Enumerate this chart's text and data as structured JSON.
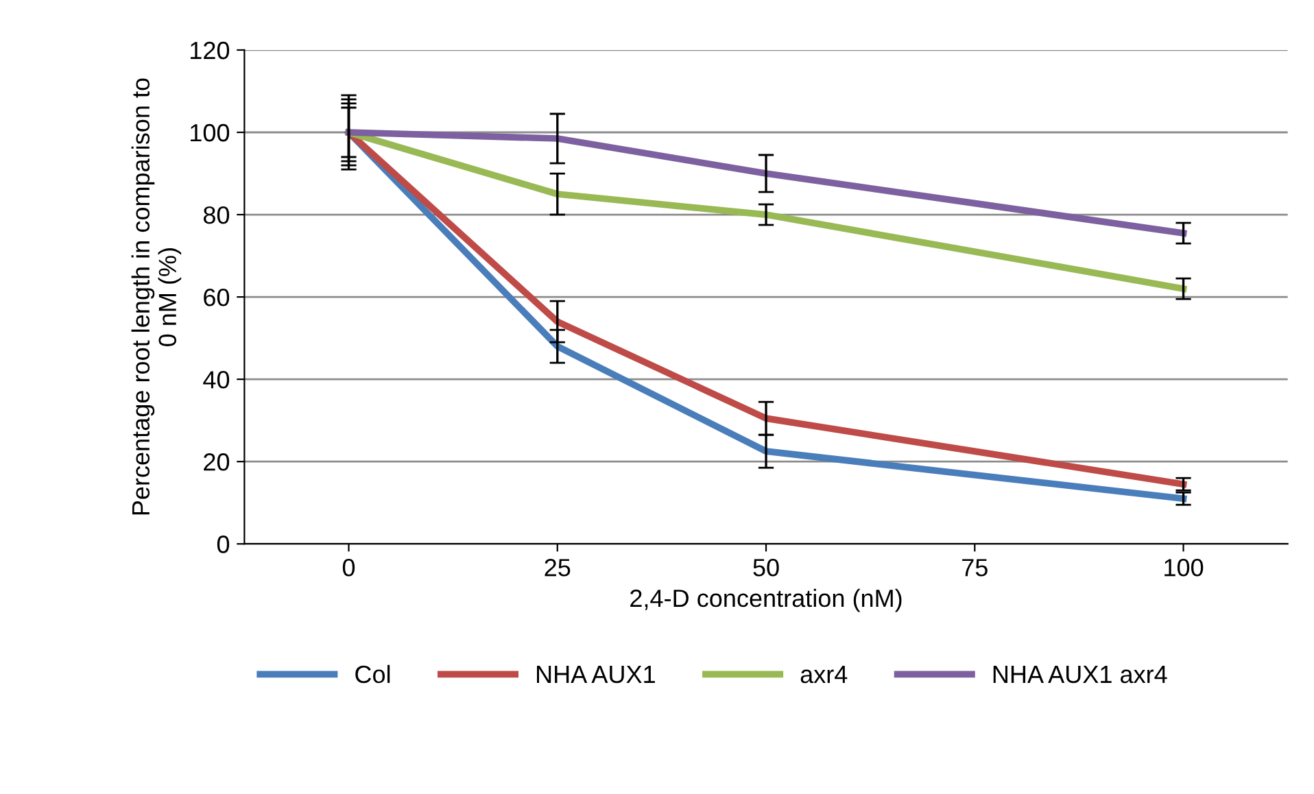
{
  "chart_data": {
    "type": "line",
    "xlabel": "2,4-D concentration (nM)",
    "ylabel": "Percentage root length in comparison to\n0 nM (%)",
    "x": [
      0,
      25,
      50,
      100
    ],
    "series": [
      {
        "name": "Col",
        "color": "#4a7ebb",
        "values": [
          100,
          48,
          22.5,
          11
        ],
        "errors": [
          8,
          4,
          4,
          1.5
        ]
      },
      {
        "name": "NHA AUX1",
        "color": "#be4b48",
        "values": [
          100,
          54,
          30.5,
          14.5
        ],
        "errors": [
          7,
          5,
          4,
          1.5
        ]
      },
      {
        "name": "axr4",
        "color": "#98b954",
        "values": [
          100,
          85,
          80,
          62
        ],
        "errors": [
          6,
          5,
          2.5,
          2.5
        ]
      },
      {
        "name": "NHA AUX1 axr4",
        "color": "#7d60a0",
        "values": [
          100,
          98.5,
          90,
          75.5
        ],
        "errors": [
          9,
          6,
          4.5,
          2.5
        ]
      }
    ],
    "xlim": [
      -12.5,
      112.5
    ],
    "xticks": [
      0,
      25,
      50,
      75,
      100
    ],
    "ylim": [
      0,
      120
    ],
    "yticks": [
      0,
      20,
      40,
      60,
      80,
      100,
      120
    ],
    "grid": "y",
    "legend": "bottom",
    "marker": "none",
    "line_style": "solid"
  }
}
